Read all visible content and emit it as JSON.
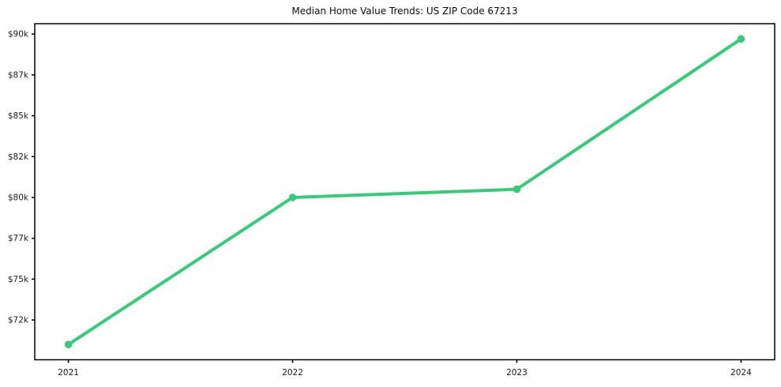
{
  "chart_data": {
    "type": "line",
    "title": "Median Home Value Trends: US ZIP Code 67213",
    "x": [
      2021,
      2022,
      2023,
      2024
    ],
    "series": [
      {
        "name": "Median Home Value",
        "values": [
          71000,
          80000,
          80500,
          89700
        ],
        "color": "#35cb77"
      }
    ],
    "xticks": {
      "values": [
        2021,
        2022,
        2023,
        2024
      ],
      "labels": [
        "2021",
        "2022",
        "2023",
        "2024"
      ]
    },
    "yticks": {
      "values": [
        72500,
        75000,
        77500,
        80000,
        82500,
        85000,
        87500,
        90000
      ],
      "labels": [
        "$72k",
        "$75k",
        "$77k",
        "$80k",
        "$82k",
        "$85k",
        "$87k",
        "$90k"
      ]
    },
    "xlim": [
      2020.85,
      2024.15
    ],
    "ylim": [
      70065,
      90635
    ],
    "grid": false,
    "legend": "none",
    "marker": "circle",
    "axis_color": "#000000",
    "tick_text_color": "#1a1a1a",
    "background_color": "#ffffff"
  }
}
